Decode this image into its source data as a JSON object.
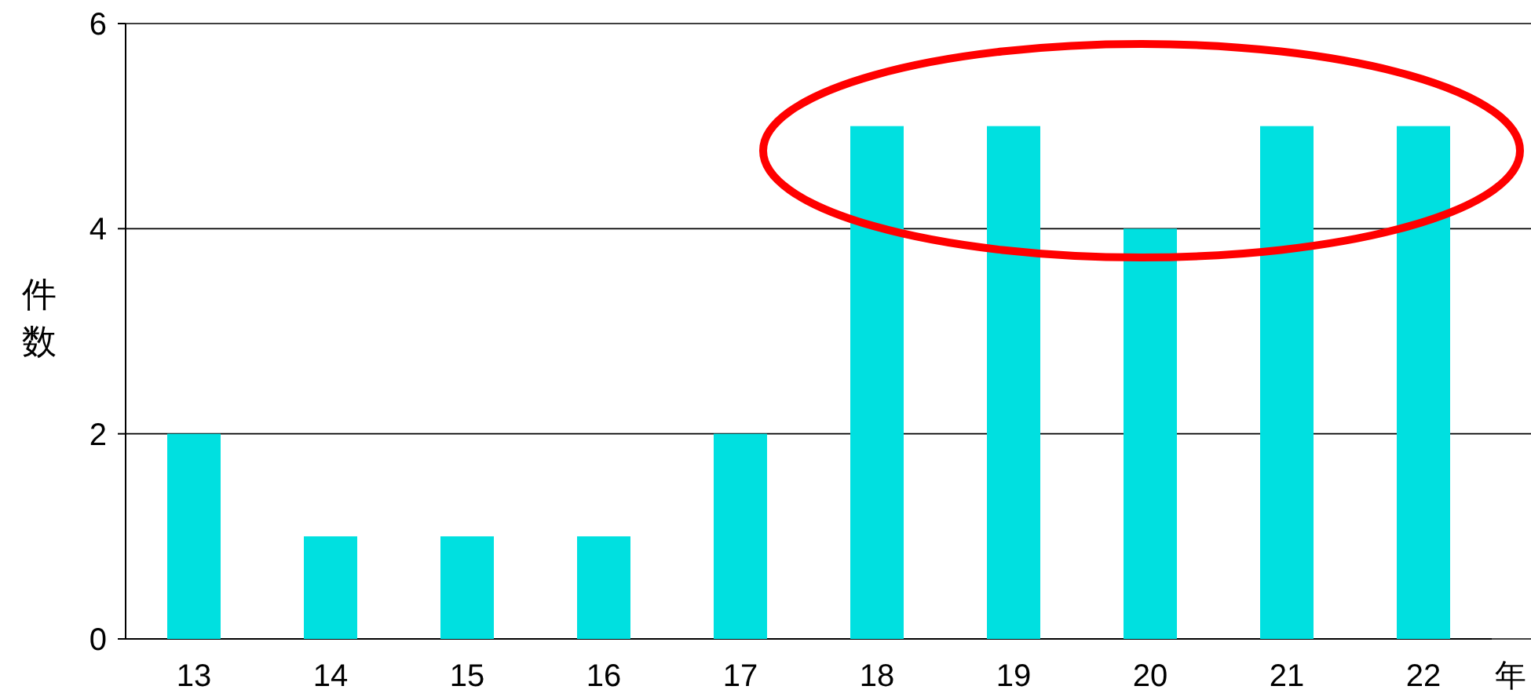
{
  "chart_data": {
    "type": "bar",
    "ylabel": "件数",
    "xlabel": "年",
    "categories": [
      "13",
      "14",
      "15",
      "16",
      "17",
      "18",
      "19",
      "20",
      "21",
      "22"
    ],
    "values": [
      2,
      1,
      1,
      1,
      2,
      5,
      5,
      4,
      5,
      5
    ],
    "color": "#00e0e0",
    "ylim": [
      0,
      6
    ],
    "yticks": [
      0,
      2,
      4,
      6
    ],
    "grid": "y"
  }
}
